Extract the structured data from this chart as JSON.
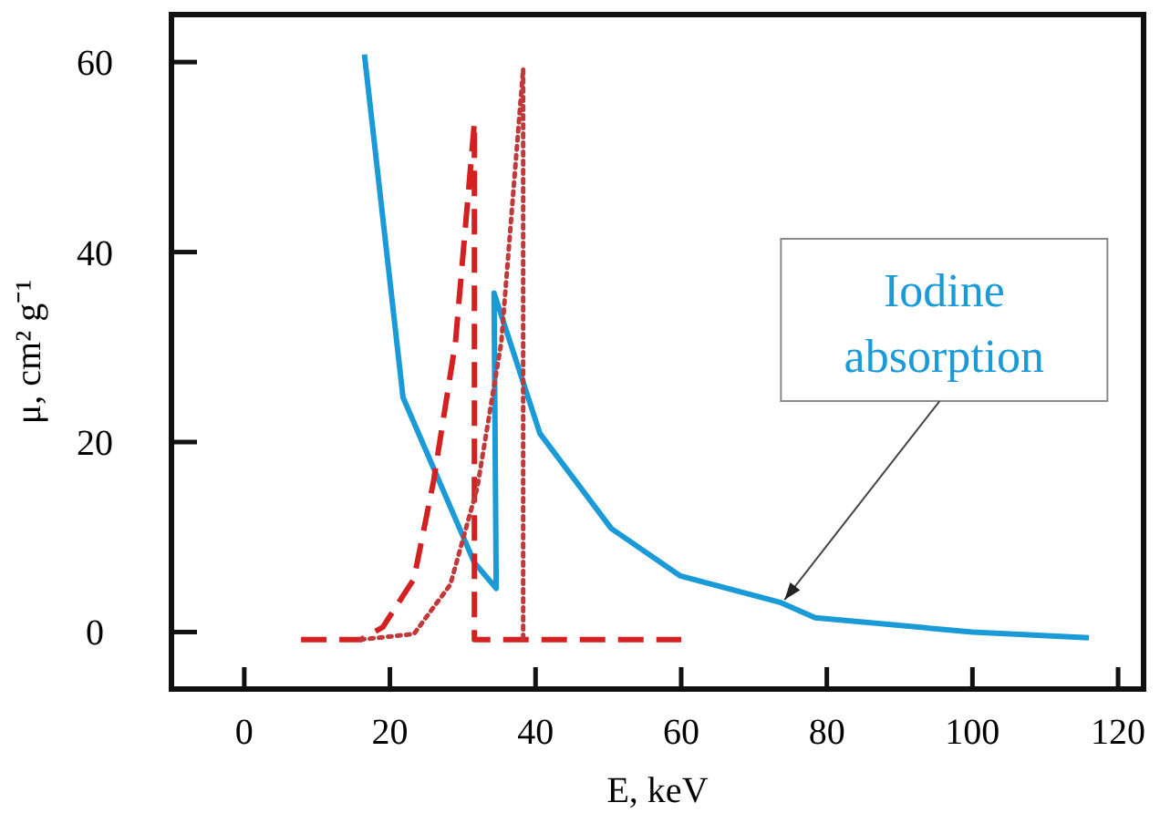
{
  "chart_data": {
    "type": "line",
    "xlabel": "E, keV",
    "ylabel": "μ, cm² g⁻¹",
    "xlim": [
      -10,
      123.5
    ],
    "ylim": [
      -6,
      65
    ],
    "xticks": [
      0,
      20,
      40,
      60,
      80,
      100,
      120
    ],
    "yticks": [
      0,
      20,
      40,
      60
    ],
    "grid": false,
    "marker": "none",
    "series": [
      {
        "color": "#1a9ad6",
        "line_style": "solid",
        "x": [
          16.5,
          21.8,
          31.6,
          34.6,
          34.3,
          40.6,
          50.4,
          59.9,
          73.7,
          78.4,
          100,
          116
        ],
        "values": [
          60.8,
          24.7,
          7.3,
          4.6,
          35.7,
          20.9,
          10.9,
          5.9,
          3.1,
          1.5,
          0,
          -0.6
        ]
      },
      {
        "color": "#d42020",
        "line_style": "dashed",
        "x": [
          7.8,
          16,
          19,
          23.3,
          26,
          29,
          31.6,
          31.6,
          60
        ],
        "values": [
          -0.8,
          -0.8,
          0.5,
          5.6,
          15.9,
          30.5,
          53.6,
          -0.8,
          -0.8
        ]
      },
      {
        "color": "#c0393b",
        "line_style": "dotted",
        "x": [
          16,
          23.3,
          28.3,
          32,
          35.3,
          38.3,
          38.3
        ],
        "values": [
          -0.8,
          -0.2,
          5,
          15.2,
          30.5,
          59.3,
          -0.8
        ]
      }
    ],
    "annotations": [
      {
        "text": "Iodine absorption",
        "x": 74.2,
        "y": 3.4
      }
    ]
  }
}
